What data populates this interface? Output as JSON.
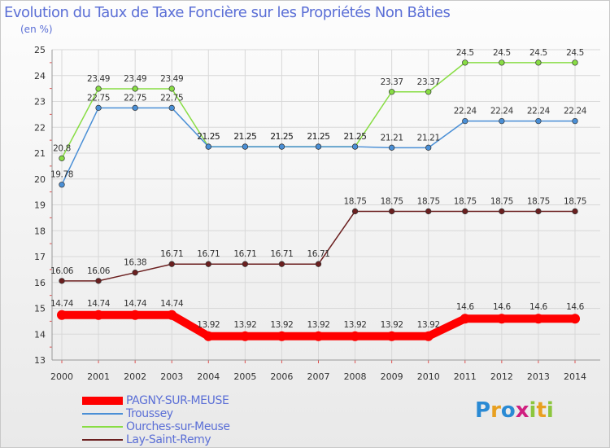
{
  "chart_data": {
    "type": "line",
    "title": "Evolution du Taux de Taxe Foncière sur les Propriétés Non Bâties",
    "ylabel": "(en %)",
    "xlabel": "",
    "categories": [
      "2000",
      "2001",
      "2002",
      "2003",
      "2004",
      "2005",
      "2006",
      "2007",
      "2008",
      "2009",
      "2010",
      "2011",
      "2012",
      "2013",
      "2014"
    ],
    "ylim": [
      13,
      25
    ],
    "yticks": [
      13,
      14,
      15,
      16,
      17,
      18,
      19,
      20,
      21,
      22,
      23,
      24,
      25
    ],
    "grid": true,
    "legend_position": "bottom-left",
    "series": [
      {
        "name": "PAGNY-SUR-MEUSE",
        "color": "#ff0000",
        "values": [
          14.74,
          14.74,
          14.74,
          14.74,
          13.92,
          13.92,
          13.92,
          13.92,
          13.92,
          13.92,
          13.92,
          14.6,
          14.6,
          14.6,
          14.6
        ],
        "labels": [
          "14.74",
          "14.74",
          "14.74",
          "14.74",
          "13.92",
          "13.92",
          "13.92",
          "13.92",
          "13.92",
          "13.92",
          "13.92",
          "14.6",
          "14.6",
          "14.6",
          "14.6"
        ]
      },
      {
        "name": "Troussey",
        "color": "#4a8fd6",
        "values": [
          19.78,
          22.75,
          22.75,
          22.75,
          21.25,
          21.25,
          21.25,
          21.25,
          21.25,
          21.21,
          21.21,
          22.24,
          22.24,
          22.24,
          22.24
        ],
        "labels": [
          "19.78",
          "22.75",
          "22.75",
          "22.75",
          "21.25",
          "21.25",
          "21.25",
          "21.25",
          "21.25",
          "21.21",
          "21.21",
          "22.24",
          "22.24",
          "22.24",
          "22.24"
        ]
      },
      {
        "name": "Ourches-sur-Meuse",
        "color": "#88dd44",
        "values": [
          20.8,
          23.49,
          23.49,
          23.49,
          21.25,
          21.25,
          21.25,
          21.25,
          21.25,
          23.37,
          23.37,
          24.5,
          24.5,
          24.5,
          24.5
        ],
        "labels": [
          "20.8",
          "23.49",
          "23.49",
          "23.49",
          "21.25",
          "21.25",
          "21.25",
          "21.25",
          "21.25",
          "23.37",
          "23.37",
          "24.5",
          "24.5",
          "24.5",
          "24.5"
        ]
      },
      {
        "name": "Lay-Saint-Remy",
        "color": "#6b1f1f",
        "values": [
          16.06,
          16.06,
          16.38,
          16.71,
          16.71,
          16.71,
          16.71,
          16.71,
          18.75,
          18.75,
          18.75,
          18.75,
          18.75,
          18.75,
          18.75
        ],
        "labels": [
          "16.06",
          "16.06",
          "16.38",
          "16.71",
          "16.71",
          "16.71",
          "16.71",
          "16.71",
          "18.75",
          "18.75",
          "18.75",
          "18.75",
          "18.75",
          "18.75",
          "18.75"
        ]
      }
    ]
  },
  "brand": {
    "letters": [
      "P",
      "r",
      "o",
      "x",
      "i",
      "t",
      "i"
    ],
    "colors": [
      "#2a8ad4",
      "#e8a020",
      "#2a8ad4",
      "#d02080",
      "#8cc63e",
      "#e8a020",
      "#8cc63e"
    ]
  }
}
